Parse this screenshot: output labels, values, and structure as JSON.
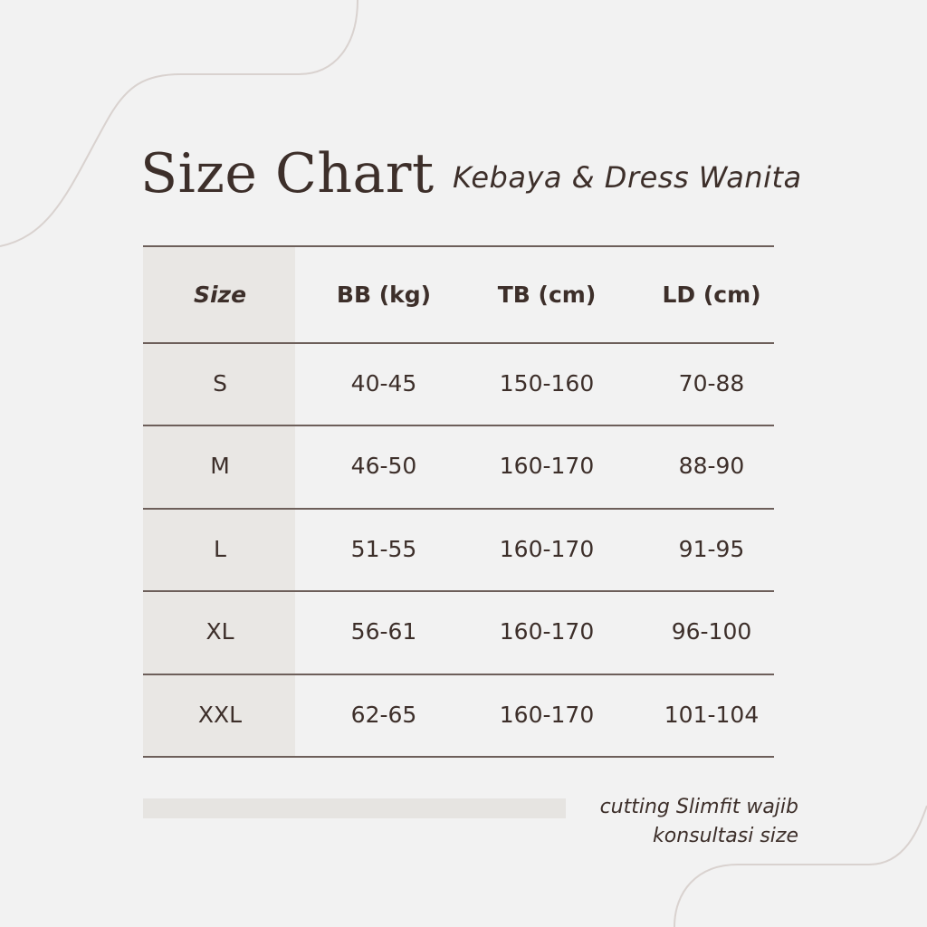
{
  "title": "Size Chart",
  "subtitle": "Kebaya & Dress Wanita",
  "table": {
    "headers": [
      "Size",
      "BB (kg)",
      "TB (cm)",
      "LD (cm)"
    ],
    "rows": [
      [
        "S",
        "40-45",
        "150-160",
        "70-88"
      ],
      [
        "M",
        "46-50",
        "160-170",
        "88-90"
      ],
      [
        "L",
        "51-55",
        "160-170",
        "91-95"
      ],
      [
        "XL",
        "56-61",
        "160-170",
        "96-100"
      ],
      [
        "XXL",
        "62-65",
        "160-170",
        "101-104"
      ]
    ]
  },
  "note": {
    "line1": "cutting Slimfit wajib",
    "line2": "konsultasi size"
  },
  "colors": {
    "background": "#f2f2f2",
    "text": "#3d2f2a",
    "size_column": "#e9e7e4",
    "rule": "#6d5f5a",
    "decor_curve": "#d9d2cf"
  }
}
